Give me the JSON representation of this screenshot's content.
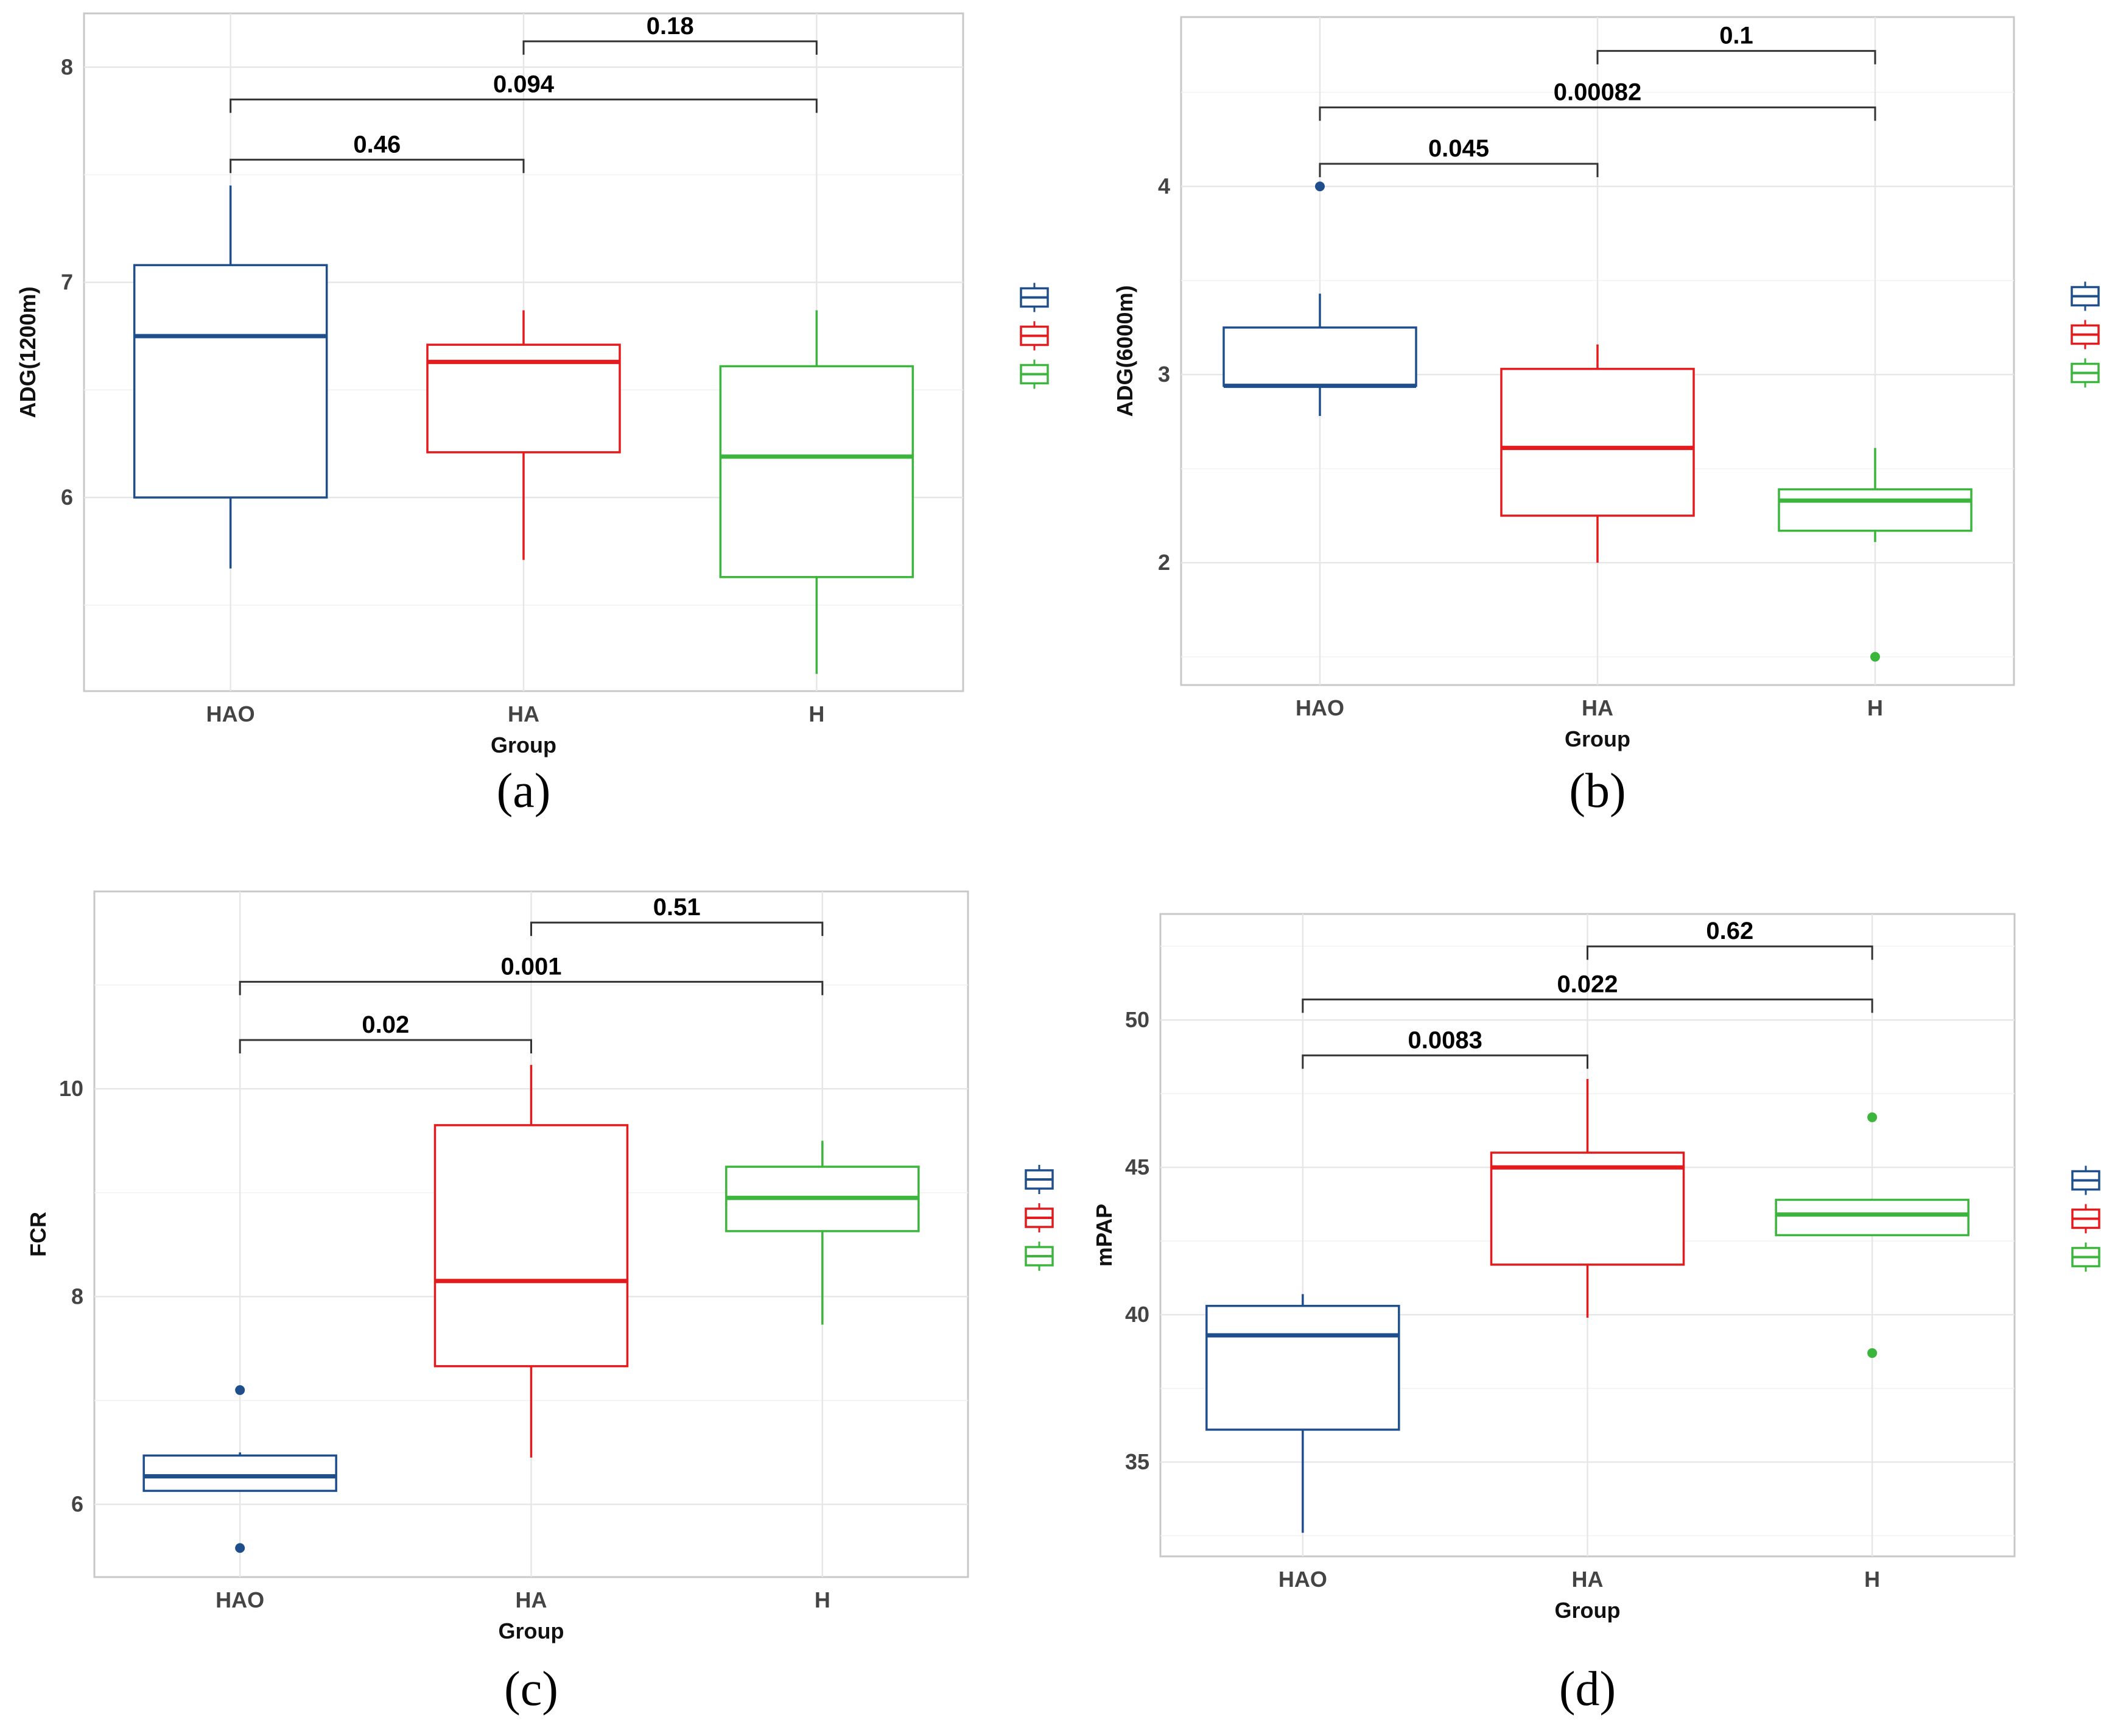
{
  "colors": {
    "HAO": "#1f4e8c",
    "HA": "#e41a1c",
    "H": "#3cb53c"
  },
  "chart_data": [
    {
      "panel": "(a)",
      "type": "box",
      "xlabel": "Group",
      "ylabel": "ADG(1200m)",
      "categories": [
        "HAO",
        "HA",
        "H"
      ],
      "ylim": [
        5.1,
        8.25
      ],
      "yticks": [
        6,
        7,
        8
      ],
      "boxes": [
        {
          "group": "HAO",
          "whisker_low": 5.67,
          "q1": 6.0,
          "median": 6.75,
          "q3": 7.08,
          "whisker_high": 7.45,
          "outliers": []
        },
        {
          "group": "HA",
          "whisker_low": 5.71,
          "q1": 6.21,
          "median": 6.63,
          "q3": 6.71,
          "whisker_high": 6.87,
          "outliers": []
        },
        {
          "group": "H",
          "whisker_low": 5.18,
          "q1": 5.63,
          "median": 6.19,
          "q3": 6.61,
          "whisker_high": 6.87,
          "outliers": []
        }
      ],
      "comparisons": [
        {
          "from": "HAO",
          "to": "HA",
          "label": "0.46",
          "y": 7.57
        },
        {
          "from": "HAO",
          "to": "H",
          "label": "0.094",
          "y": 7.85
        },
        {
          "from": "HA",
          "to": "H",
          "label": "0.18",
          "y": 8.12
        }
      ]
    },
    {
      "panel": "(b)",
      "type": "box",
      "xlabel": "Group",
      "ylabel": "ADG(6000m)",
      "categories": [
        "HAO",
        "HA",
        "H"
      ],
      "ylim": [
        1.35,
        4.9
      ],
      "yticks": [
        2,
        3,
        4
      ],
      "boxes": [
        {
          "group": "HAO",
          "whisker_low": 2.78,
          "q1": 2.94,
          "median": 2.94,
          "q3": 3.25,
          "whisker_high": 3.43,
          "outliers": [
            4.0
          ]
        },
        {
          "group": "HA",
          "whisker_low": 2.0,
          "q1": 2.25,
          "median": 2.61,
          "q3": 3.03,
          "whisker_high": 3.16,
          "outliers": []
        },
        {
          "group": "H",
          "whisker_low": 2.11,
          "q1": 2.17,
          "median": 2.33,
          "q3": 2.39,
          "whisker_high": 2.61,
          "outliers": [
            1.5
          ]
        }
      ],
      "comparisons": [
        {
          "from": "HAO",
          "to": "HA",
          "label": "0.045",
          "y": 4.12
        },
        {
          "from": "HAO",
          "to": "H",
          "label": "0.00082",
          "y": 4.42
        },
        {
          "from": "HA",
          "to": "H",
          "label": "0.1",
          "y": 4.72
        }
      ]
    },
    {
      "panel": "(c)",
      "type": "box",
      "xlabel": "Group",
      "ylabel": "FCR",
      "categories": [
        "HAO",
        "HA",
        "H"
      ],
      "ylim": [
        5.3,
        11.9
      ],
      "yticks": [
        6,
        8,
        10
      ],
      "boxes": [
        {
          "group": "HAO",
          "whisker_low": 6.13,
          "q1": 6.13,
          "median": 6.27,
          "q3": 6.47,
          "whisker_high": 6.5,
          "outliers": [
            7.1,
            5.58
          ]
        },
        {
          "group": "HA",
          "whisker_low": 6.45,
          "q1": 7.33,
          "median": 8.15,
          "q3": 9.65,
          "whisker_high": 10.23,
          "outliers": []
        },
        {
          "group": "H",
          "whisker_low": 7.73,
          "q1": 8.63,
          "median": 8.95,
          "q3": 9.25,
          "whisker_high": 9.5,
          "outliers": []
        }
      ],
      "comparisons": [
        {
          "from": "HAO",
          "to": "HA",
          "label": "0.02",
          "y": 10.47
        },
        {
          "from": "HAO",
          "to": "H",
          "label": "0.001",
          "y": 11.03
        },
        {
          "from": "HA",
          "to": "H",
          "label": "0.51",
          "y": 11.6
        }
      ]
    },
    {
      "panel": "(d)",
      "type": "box",
      "xlabel": "Group",
      "ylabel": "mPAP",
      "categories": [
        "HAO",
        "HA",
        "H"
      ],
      "ylim": [
        31.8,
        53.6
      ],
      "yticks": [
        35,
        40,
        45,
        50
      ],
      "boxes": [
        {
          "group": "HAO",
          "whisker_low": 32.6,
          "q1": 36.1,
          "median": 39.3,
          "q3": 40.3,
          "whisker_high": 40.7,
          "outliers": []
        },
        {
          "group": "HA",
          "whisker_low": 39.9,
          "q1": 41.7,
          "median": 45.0,
          "q3": 45.5,
          "whisker_high": 48.0,
          "outliers": []
        },
        {
          "group": "H",
          "whisker_low": 42.7,
          "q1": 42.7,
          "median": 43.4,
          "q3": 43.9,
          "whisker_high": 43.9,
          "outliers": [
            46.7,
            38.7
          ]
        }
      ],
      "comparisons": [
        {
          "from": "HAO",
          "to": "HA",
          "label": "0.0083",
          "y": 48.8
        },
        {
          "from": "HAO",
          "to": "H",
          "label": "0.022",
          "y": 50.7
        },
        {
          "from": "HA",
          "to": "H",
          "label": "0.62",
          "y": 52.5
        }
      ]
    }
  ]
}
